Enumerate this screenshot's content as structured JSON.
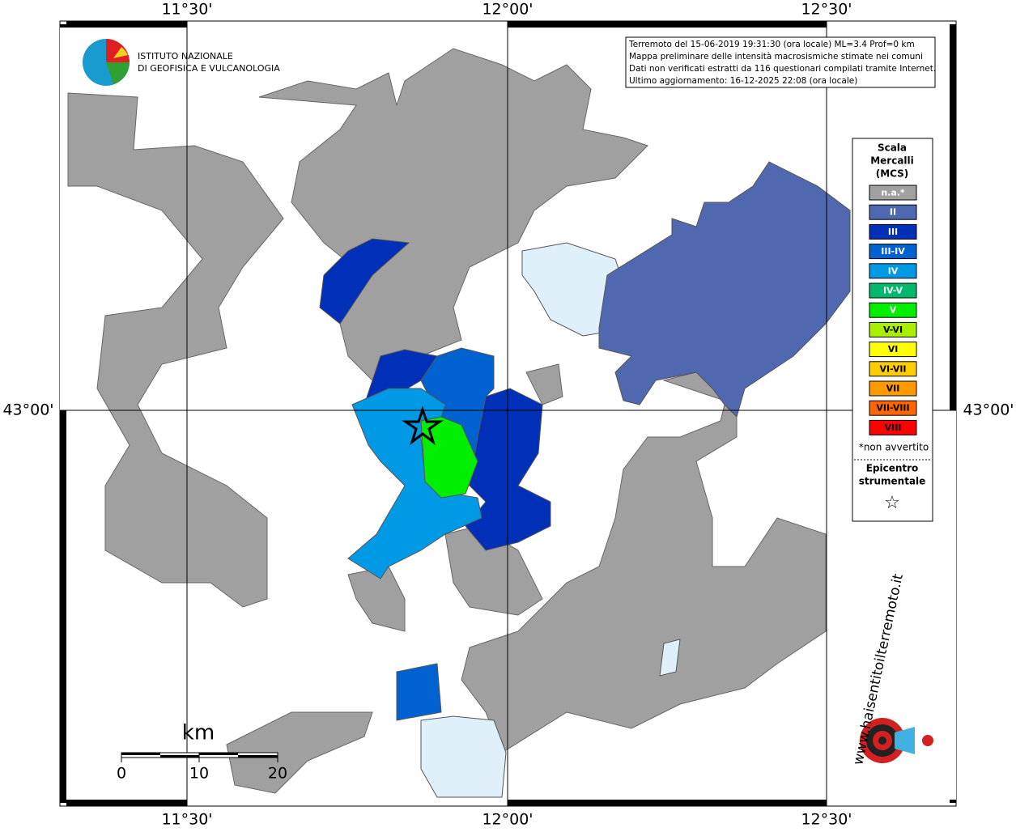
{
  "axes": {
    "top": [
      "11°30'",
      "12°00'",
      "12°30'"
    ],
    "bottom": [
      "11°30'",
      "12°00'",
      "12°30'"
    ],
    "left": "43°00'",
    "right": "43°00'"
  },
  "logo": {
    "line1": "ISTITUTO NAZIONALE",
    "line2": "DI GEOFISICA E VULCANOLOGIA"
  },
  "info": [
    "Terremoto del 15-06-2019 19:31:30 (ora locale) ML=3.4 Prof=0 km",
    "Mappa preliminare delle intensità macrosismiche stimate nei comuni",
    "Dati non verificati estratti da 116 questionari compilati tramite Internet.",
    "Ultimo aggiornamento: 16-12-2025 22:08 (ora locale)"
  ],
  "legend": {
    "title": [
      "Scala",
      "Mercalli",
      "(MCS)"
    ],
    "items": [
      {
        "label": "n.a.*",
        "color": "#a0a0a0"
      },
      {
        "label": "II",
        "color": "#5068b0"
      },
      {
        "label": "III",
        "color": "#0030b8"
      },
      {
        "label": "III-IV",
        "color": "#0062d0"
      },
      {
        "label": "IV",
        "color": "#0099e6"
      },
      {
        "label": "IV-V",
        "color": "#00b86b"
      },
      {
        "label": "V",
        "color": "#00ee00"
      },
      {
        "label": "V-VI",
        "color": "#aaee00"
      },
      {
        "label": "VI",
        "color": "#ffff00"
      },
      {
        "label": "VI-VII",
        "color": "#ffcc00"
      },
      {
        "label": "VII",
        "color": "#ff9900"
      },
      {
        "label": "VII-VIII",
        "color": "#ff6600"
      },
      {
        "label": "VIII",
        "color": "#ff0000"
      }
    ],
    "note": "*non avvertito",
    "epicenter": [
      "Epicentro",
      "strumentale"
    ],
    "star": "☆"
  },
  "scale": {
    "unit": "km",
    "labels": [
      "0",
      "10",
      "20"
    ]
  },
  "badge": "www.haisentitoilterremoto.it"
}
